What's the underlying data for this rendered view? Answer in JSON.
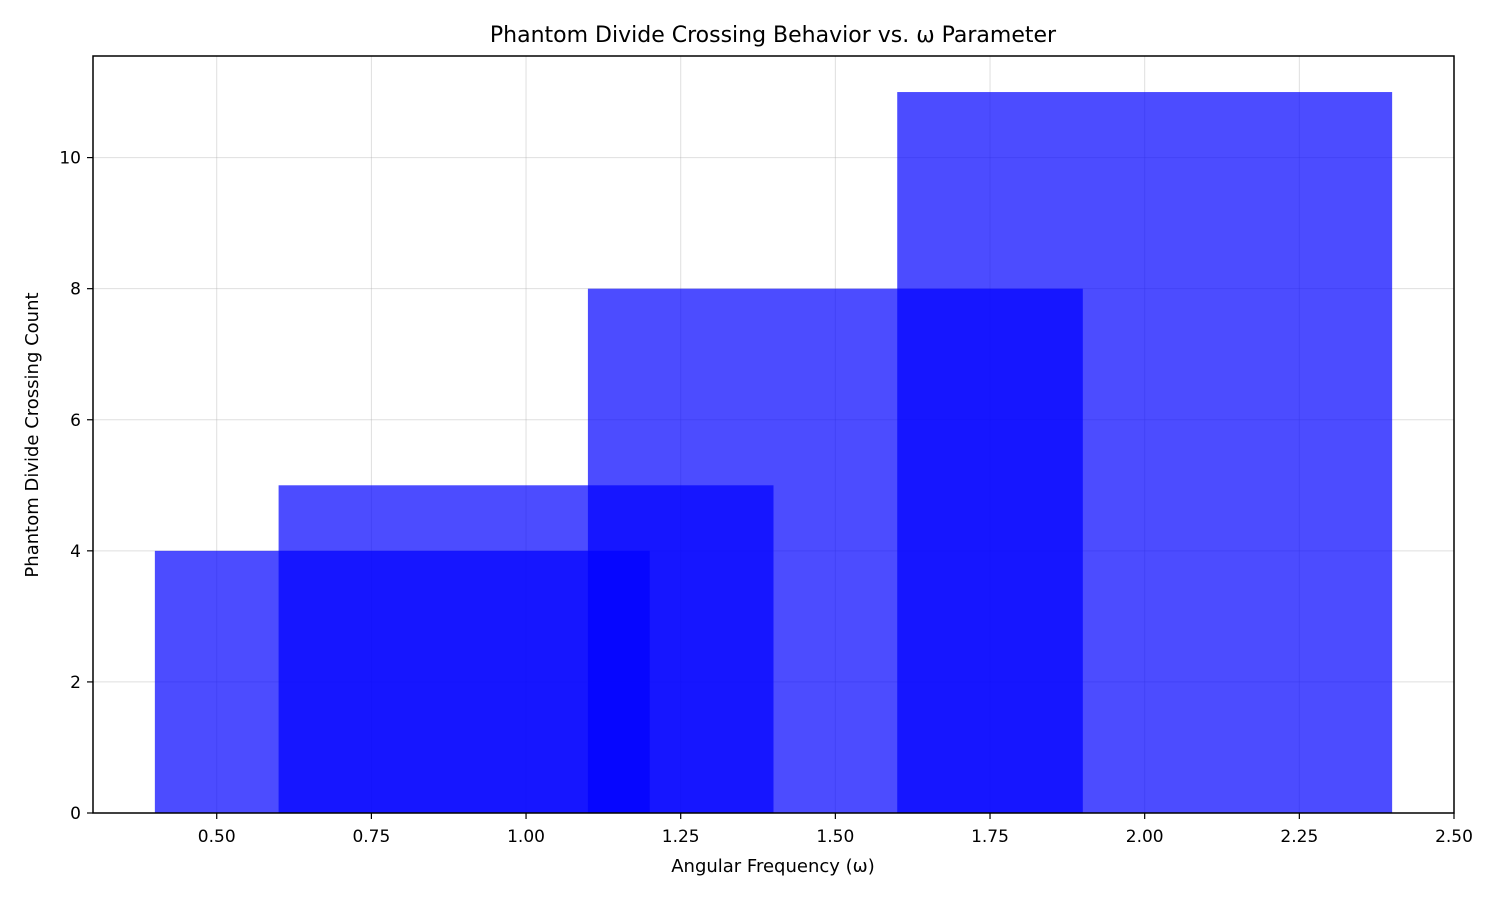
{
  "chart_data": {
    "type": "bar",
    "title": "Phantom Divide Crossing Behavior vs. ω Parameter",
    "xlabel": "Angular Frequency (ω)",
    "ylabel": "Phantom Divide Crossing Count",
    "xlim": [
      0.3,
      2.5
    ],
    "ylim": [
      0,
      11.55
    ],
    "xticks": [
      0.5,
      0.75,
      1.0,
      1.25,
      1.5,
      1.75,
      2.0,
      2.25,
      2.5
    ],
    "xtick_labels": [
      "0.50",
      "0.75",
      "1.00",
      "1.25",
      "1.50",
      "1.75",
      "2.00",
      "2.25",
      "2.50"
    ],
    "yticks": [
      0,
      2,
      4,
      6,
      8,
      10
    ],
    "ytick_labels": [
      "0",
      "2",
      "4",
      "6",
      "8",
      "10"
    ],
    "grid": true,
    "bar_color": "#0000ff",
    "bar_opacity": 0.7,
    "series": [
      {
        "x": 0.8,
        "width": 0.8,
        "value": 4
      },
      {
        "x": 1.0,
        "width": 0.8,
        "value": 5
      },
      {
        "x": 1.5,
        "width": 0.8,
        "value": 8
      },
      {
        "x": 2.0,
        "width": 0.8,
        "value": 11
      }
    ]
  }
}
